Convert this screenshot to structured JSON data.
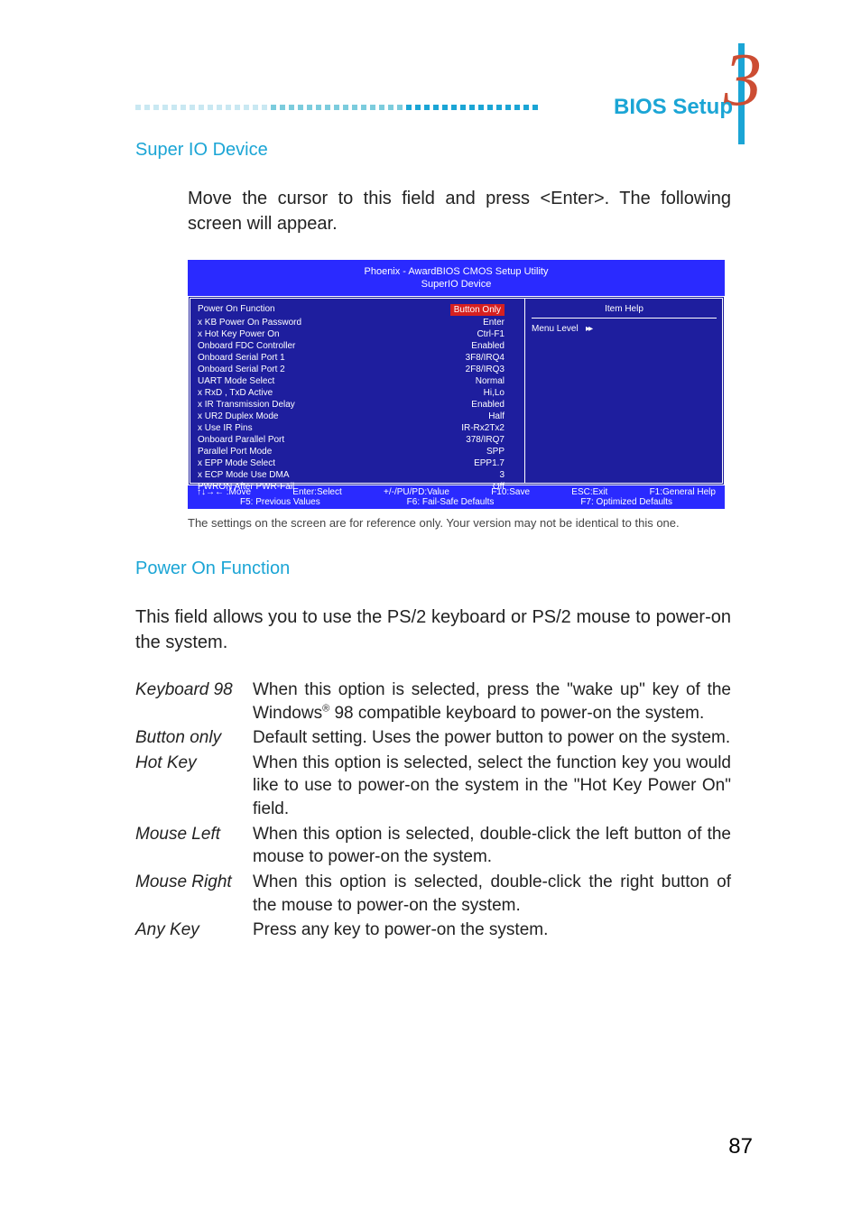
{
  "colors": {
    "accent": "#1ba5d5",
    "chapter_num": "#cc4d33",
    "bios_header_bg": "#2a2aff",
    "bios_body_bg": "#1e1e9e",
    "bios_footer_bg": "#2a2aff",
    "bios_highlight": "#d62020",
    "dot_light": "#c9e8f2",
    "dot_mid": "#7cccdd",
    "dot_dark": "#1ba5d5"
  },
  "chapter_number": "3",
  "section_title": "BIOS Setup",
  "subheading1": "Super IO Device",
  "paragraph1": "Move the cursor to this field and press <Enter>. The following screen will appear.",
  "bios": {
    "header_line1": "Phoenix - AwardBIOS CMOS Setup Utility",
    "header_line2": "SuperIO Device",
    "rows": [
      {
        "label": "Power On Function",
        "value": "Button Only",
        "highlight": true
      },
      {
        "label": "x KB Power On Password",
        "value": "Enter"
      },
      {
        "label": "x Hot Key Power On",
        "value": "Ctrl-F1"
      },
      {
        "label": "Onboard FDC Controller",
        "value": "Enabled"
      },
      {
        "label": "Onboard Serial Port 1",
        "value": "3F8/IRQ4"
      },
      {
        "label": "Onboard Serial Port 2",
        "value": "2F8/IRQ3"
      },
      {
        "label": "UART Mode Select",
        "value": "Normal"
      },
      {
        "label": "x RxD , TxD Active",
        "value": "Hi,Lo"
      },
      {
        "label": "x IR Transmission Delay",
        "value": "Enabled"
      },
      {
        "label": "x UR2 Duplex Mode",
        "value": "Half"
      },
      {
        "label": "x Use IR Pins",
        "value": "IR-Rx2Tx2"
      },
      {
        "label": "Onboard Parallel Port",
        "value": "378/IRQ7"
      },
      {
        "label": "Parallel Port Mode",
        "value": "SPP"
      },
      {
        "label": "x EPP Mode Select",
        "value": "EPP1.7"
      },
      {
        "label": "x ECP Mode Use DMA",
        "value": "3"
      },
      {
        "label": "PWRON After PWR-Fail",
        "value": "Off"
      }
    ],
    "item_help": "Item Help",
    "menu_level": "Menu Level",
    "footer": {
      "f1": "↑↓→← :Move",
      "f2": "Enter:Select",
      "f3": "+/-/PU/PD:Value",
      "f4": "F10:Save",
      "f5": "ESC:Exit",
      "f6": "F1:General Help",
      "g1": "F5: Previous Values",
      "g2": "F6: Fail-Safe Defaults",
      "g3": "F7: Optimized Defaults"
    }
  },
  "caption": "The settings on the screen are for reference only. Your version may not be identical to this one.",
  "subheading2": "Power On Function",
  "paragraph2": "This field allows you to use the PS/2 keyboard or PS/2 mouse to power-on the system.",
  "definitions": [
    {
      "term": "Keyboard 98",
      "desc_pre": "When this option is selected, press the \"wake up\" key of the Windows",
      "desc_sup": "®",
      "desc_post": " 98 compatible keyboard to power-on the system."
    },
    {
      "term": "Button only",
      "desc": "Default setting. Uses the power button to power on the system."
    },
    {
      "term": "Hot Key",
      "desc": "When this option is selected, select the function key you would like to use to power-on the system in the \"Hot Key Power On\" field."
    },
    {
      "term": "Mouse Left",
      "desc": "When this option is selected, double-click the left button of the mouse to power-on the system."
    },
    {
      "term": "Mouse Right",
      "desc": "When this option is selected, double-click the right button of the mouse to power-on the system."
    },
    {
      "term": "Any Key",
      "desc": "Press any key to power-on the system."
    }
  ],
  "page_number": "87"
}
